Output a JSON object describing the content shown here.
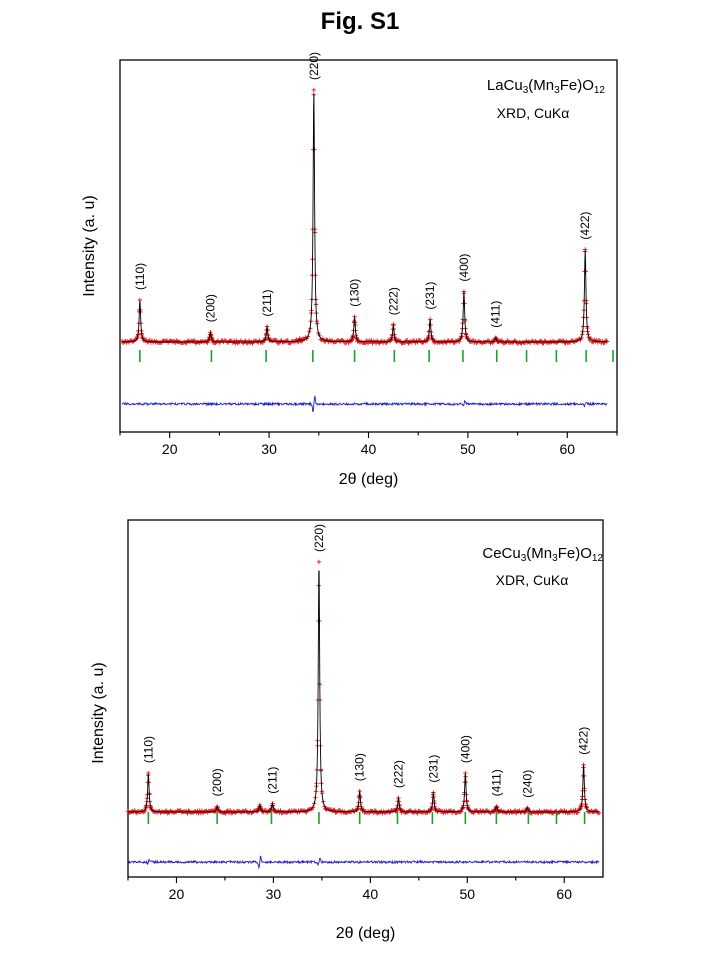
{
  "figure_title": "Fig. S1",
  "chart_data": [
    {
      "type": "line",
      "compound": {
        "base": "LaCu",
        "sub1": "3",
        "mid": "(Mn",
        "sub2": "3",
        "end": "Fe)O",
        "sub3": "12"
      },
      "method": "XRD, CuKα",
      "xlabel": "2θ (deg)",
      "ylabel": "Intensity (a. u)",
      "xlim": [
        15,
        65
      ],
      "xticks": [
        20,
        30,
        40,
        50,
        60
      ],
      "x_range": [
        15.2,
        64.0
      ],
      "baseline": 0.1,
      "peaks": [
        {
          "x": 17.0,
          "y": 0.25,
          "label": "(110)"
        },
        {
          "x": 24.1,
          "y": 0.135,
          "label": "(200)"
        },
        {
          "x": 29.8,
          "y": 0.155,
          "label": "(211)"
        },
        {
          "x": 33.1,
          "y": 0.105,
          "label": ""
        },
        {
          "x": 34.5,
          "y": 1.0,
          "label": "(220)"
        },
        {
          "x": 38.6,
          "y": 0.19,
          "label": "(130)"
        },
        {
          "x": 42.5,
          "y": 0.16,
          "label": "(222)"
        },
        {
          "x": 46.2,
          "y": 0.18,
          "label": "(231)"
        },
        {
          "x": 49.6,
          "y": 0.28,
          "label": "(400)"
        },
        {
          "x": 52.8,
          "y": 0.115,
          "label": "(411)"
        },
        {
          "x": 61.8,
          "y": 0.43,
          "label": "(422)"
        }
      ],
      "bragg_positions": [
        17.0,
        24.2,
        29.7,
        34.4,
        38.6,
        42.6,
        46.1,
        49.5,
        52.9,
        55.9,
        58.9,
        61.9,
        64.6
      ],
      "difference_features": [
        {
          "x": 34.5,
          "amp": 0.045
        },
        {
          "x": 49.6,
          "amp": 0.015
        },
        {
          "x": 61.8,
          "amp": 0.015
        }
      ],
      "series": [
        {
          "name": "",
          "color": "#e8141c",
          "role": "observed"
        },
        {
          "name": "",
          "color": "#000000",
          "role": "calculated"
        },
        {
          "name": "",
          "color": "#1f9e2f",
          "role": "bragg"
        },
        {
          "name": "",
          "color": "#1e1ec8",
          "role": "difference"
        }
      ]
    },
    {
      "type": "line",
      "compound": {
        "base": "CeCu",
        "sub1": "3",
        "mid": "(Mn",
        "sub2": "3",
        "end": "Fe)O",
        "sub3": "12"
      },
      "method": "XDR, CuKα",
      "xlabel": "2θ (deg)",
      "ylabel": "Intensity (a. u)",
      "xlim": [
        15,
        64
      ],
      "xticks": [
        20,
        30,
        40,
        50,
        60
      ],
      "x_range": [
        15.0,
        63.6
      ],
      "baseline": 0.1,
      "peaks": [
        {
          "x": 17.1,
          "y": 0.24,
          "label": "(110)"
        },
        {
          "x": 24.2,
          "y": 0.12,
          "label": "(200)"
        },
        {
          "x": 28.6,
          "y": 0.125,
          "label": ""
        },
        {
          "x": 29.9,
          "y": 0.13,
          "label": "(211)"
        },
        {
          "x": 34.7,
          "y": 1.0,
          "label": "(220)"
        },
        {
          "x": 38.9,
          "y": 0.175,
          "label": "(130)"
        },
        {
          "x": 42.9,
          "y": 0.15,
          "label": "(222)"
        },
        {
          "x": 46.5,
          "y": 0.17,
          "label": "(231)"
        },
        {
          "x": 49.8,
          "y": 0.24,
          "label": "(400)"
        },
        {
          "x": 53.0,
          "y": 0.12,
          "label": "(411)"
        },
        {
          "x": 56.2,
          "y": 0.115,
          "label": "(240)"
        },
        {
          "x": 62.0,
          "y": 0.27,
          "label": "(422)"
        }
      ],
      "bragg_positions": [
        17.1,
        24.2,
        29.8,
        34.7,
        38.9,
        42.8,
        46.4,
        49.8,
        53.0,
        56.3,
        59.2,
        62.1
      ],
      "difference_features": [
        {
          "x": 28.6,
          "amp": 0.035
        },
        {
          "x": 34.7,
          "amp": 0.02
        },
        {
          "x": 17.1,
          "amp": 0.01
        }
      ],
      "series": [
        {
          "name": "",
          "color": "#e8141c",
          "role": "observed"
        },
        {
          "name": "",
          "color": "#000000",
          "role": "calculated"
        },
        {
          "name": "",
          "color": "#1f9e2f",
          "role": "bragg"
        },
        {
          "name": "",
          "color": "#1e1ec8",
          "role": "difference"
        }
      ]
    }
  ]
}
